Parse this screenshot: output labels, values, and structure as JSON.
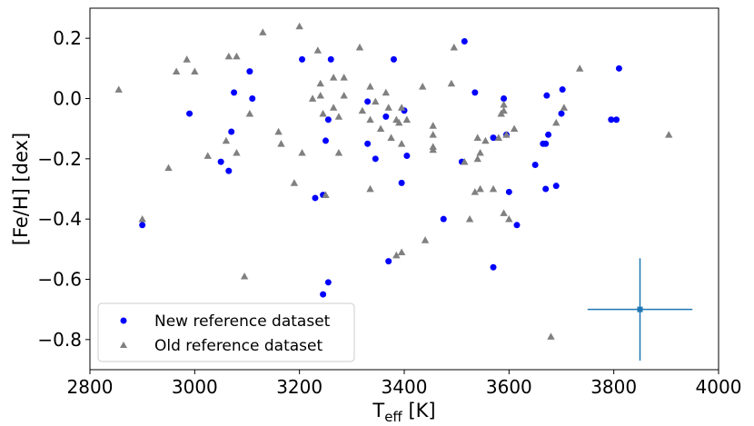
{
  "chart_data": {
    "type": "scatter",
    "xlabel_main": "T",
    "xlabel_sub": "eff",
    "xlabel_unit": " [K]",
    "ylabel": "[Fe/H] [dex]",
    "xlim": [
      2800,
      4000
    ],
    "ylim": [
      -0.9,
      0.3
    ],
    "xticks": [
      2800,
      3000,
      3200,
      3400,
      3600,
      3800,
      4000
    ],
    "yticks": [
      0.2,
      0.0,
      -0.2,
      -0.4,
      -0.6,
      -0.8
    ],
    "xtick_labels": [
      "2800",
      "3000",
      "3200",
      "3400",
      "3600",
      "3800",
      "4000"
    ],
    "ytick_labels": [
      "0.2",
      "0.0",
      "−0.2",
      "−0.4",
      "−0.6",
      "−0.8"
    ],
    "grid": false,
    "legend_position": "lower-left",
    "series": [
      {
        "name": "New reference dataset",
        "marker": "circle",
        "color": "#0000ff",
        "points": [
          [
            2900,
            -0.42
          ],
          [
            2990,
            -0.05
          ],
          [
            3050,
            -0.21
          ],
          [
            3065,
            -0.24
          ],
          [
            3070,
            -0.11
          ],
          [
            3075,
            0.02
          ],
          [
            3105,
            0.09
          ],
          [
            3110,
            0.0
          ],
          [
            3205,
            0.13
          ],
          [
            3230,
            -0.33
          ],
          [
            3245,
            -0.32
          ],
          [
            3245,
            -0.65
          ],
          [
            3250,
            -0.14
          ],
          [
            3255,
            -0.07
          ],
          [
            3255,
            -0.61
          ],
          [
            3260,
            0.13
          ],
          [
            3330,
            -0.01
          ],
          [
            3330,
            -0.15
          ],
          [
            3345,
            -0.2
          ],
          [
            3365,
            -0.06
          ],
          [
            3370,
            -0.54
          ],
          [
            3380,
            0.13
          ],
          [
            3395,
            -0.28
          ],
          [
            3400,
            -0.04
          ],
          [
            3405,
            -0.19
          ],
          [
            3475,
            -0.4
          ],
          [
            3510,
            -0.21
          ],
          [
            3515,
            0.19
          ],
          [
            3535,
            0.02
          ],
          [
            3570,
            -0.13
          ],
          [
            3570,
            -0.56
          ],
          [
            3590,
            0.0
          ],
          [
            3595,
            -0.12
          ],
          [
            3600,
            -0.31
          ],
          [
            3615,
            -0.42
          ],
          [
            3650,
            -0.22
          ],
          [
            3665,
            -0.15
          ],
          [
            3670,
            -0.15
          ],
          [
            3670,
            -0.3
          ],
          [
            3672,
            0.01
          ],
          [
            3675,
            -0.12
          ],
          [
            3690,
            -0.29
          ],
          [
            3700,
            -0.05
          ],
          [
            3702,
            0.03
          ],
          [
            3795,
            -0.07
          ],
          [
            3805,
            -0.07
          ],
          [
            3810,
            0.1
          ]
        ]
      },
      {
        "name": "Old reference dataset",
        "marker": "triangle",
        "color": "#808080",
        "points": [
          [
            2855,
            0.03
          ],
          [
            2900,
            -0.4
          ],
          [
            2950,
            -0.23
          ],
          [
            2965,
            0.09
          ],
          [
            2985,
            0.13
          ],
          [
            3000,
            0.09
          ],
          [
            3025,
            -0.19
          ],
          [
            3060,
            -0.14
          ],
          [
            3065,
            0.14
          ],
          [
            3080,
            0.14
          ],
          [
            3080,
            -0.18
          ],
          [
            3095,
            -0.59
          ],
          [
            3105,
            -0.05
          ],
          [
            3130,
            0.22
          ],
          [
            3160,
            -0.11
          ],
          [
            3165,
            -0.15
          ],
          [
            3190,
            -0.28
          ],
          [
            3200,
            0.24
          ],
          [
            3205,
            -0.18
          ],
          [
            3225,
            0.0
          ],
          [
            3235,
            0.16
          ],
          [
            3240,
            0.05
          ],
          [
            3240,
            0.01
          ],
          [
            3245,
            -0.05
          ],
          [
            3250,
            -0.32
          ],
          [
            3265,
            0.07
          ],
          [
            3265,
            -0.03
          ],
          [
            3275,
            -0.06
          ],
          [
            3275,
            -0.18
          ],
          [
            3285,
            0.07
          ],
          [
            3285,
            0.01
          ],
          [
            3315,
            0.17
          ],
          [
            3320,
            -0.04
          ],
          [
            3335,
            -0.07
          ],
          [
            3335,
            -0.3
          ],
          [
            3335,
            0.04
          ],
          [
            3345,
            -0.01
          ],
          [
            3355,
            -0.1
          ],
          [
            3365,
            0.02
          ],
          [
            3370,
            -0.03
          ],
          [
            3375,
            -0.13
          ],
          [
            3385,
            -0.07
          ],
          [
            3385,
            -0.52
          ],
          [
            3390,
            -0.08
          ],
          [
            3395,
            -0.51
          ],
          [
            3395,
            -0.15
          ],
          [
            3395,
            -0.03
          ],
          [
            3405,
            -0.07
          ],
          [
            3435,
            0.04
          ],
          [
            3440,
            -0.47
          ],
          [
            3455,
            -0.12
          ],
          [
            3455,
            -0.09
          ],
          [
            3455,
            -0.16
          ],
          [
            3455,
            -0.17
          ],
          [
            3490,
            0.05
          ],
          [
            3495,
            0.17
          ],
          [
            3515,
            -0.21
          ],
          [
            3525,
            -0.4
          ],
          [
            3535,
            -0.31
          ],
          [
            3540,
            -0.13
          ],
          [
            3540,
            -0.2
          ],
          [
            3545,
            -0.18
          ],
          [
            3545,
            -0.3
          ],
          [
            3555,
            -0.14
          ],
          [
            3570,
            -0.3
          ],
          [
            3580,
            -0.13
          ],
          [
            3585,
            -0.05
          ],
          [
            3590,
            -0.02
          ],
          [
            3590,
            -0.38
          ],
          [
            3590,
            -0.04
          ],
          [
            3595,
            -0.12
          ],
          [
            3600,
            -0.4
          ],
          [
            3610,
            -0.1
          ],
          [
            3680,
            -0.79
          ],
          [
            3690,
            -0.08
          ],
          [
            3705,
            -0.03
          ],
          [
            3735,
            0.1
          ],
          [
            3905,
            -0.12
          ]
        ]
      }
    ],
    "errorbar": {
      "x": 3850,
      "y": -0.7,
      "xerr": 100,
      "yerr": 0.17,
      "color": "#1f77b4"
    }
  }
}
